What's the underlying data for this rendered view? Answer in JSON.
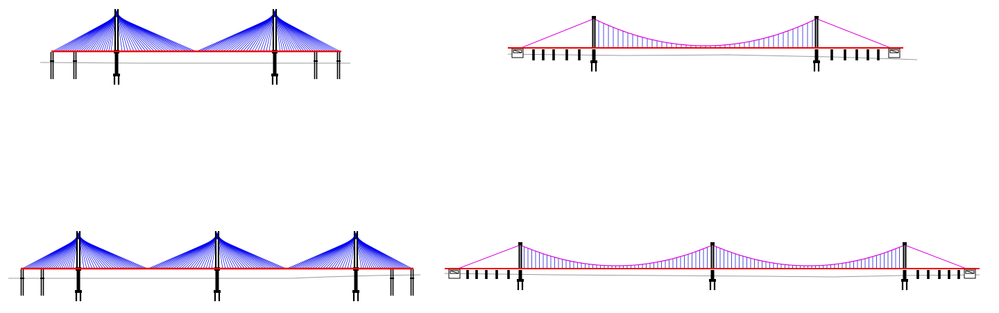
{
  "colors": {
    "cable_stayed_cables": "#0000ee",
    "suspension_main_cable": "#dd00dd",
    "hangers": "#0000cc",
    "deck": "#ee0000",
    "structure": "#000000",
    "ground_line": "#9a9a9a",
    "background": "#ffffff"
  },
  "figures": [
    {
      "kind": "cable-stayed",
      "pylons": 2
    },
    {
      "kind": "suspension",
      "pylons": 2
    },
    {
      "kind": "cable-stayed",
      "pylons": 3
    },
    {
      "kind": "suspension",
      "pylons": 3
    }
  ]
}
